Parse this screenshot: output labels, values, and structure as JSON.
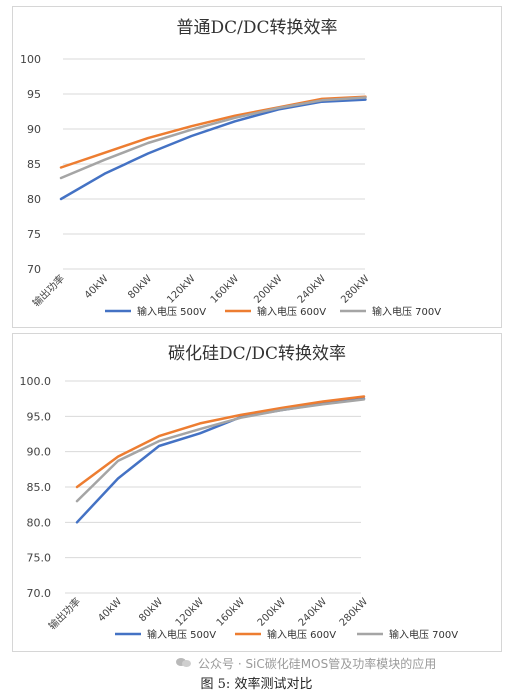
{
  "charts": [
    {
      "title": "普通DC/DC转换效率",
      "chart_data": {
        "type": "line",
        "title": "普通DC/DC转换效率",
        "categories": [
          "输出功率",
          "40kW",
          "80kW",
          "120kW",
          "160kW",
          "200kW",
          "240kW",
          "280kW"
        ],
        "ylim": [
          70,
          100
        ],
        "yticks": [
          70,
          75,
          80,
          85,
          90,
          95,
          100
        ],
        "ytick_decimals": 0,
        "grid": true,
        "legend_position": "bottom",
        "series": [
          {
            "name": "输入电压 500V",
            "color": "#4472C4",
            "values": [
              80.0,
              83.6,
              86.5,
              89.0,
              91.1,
              92.8,
              93.9,
              94.2
            ]
          },
          {
            "name": "输入电压 600V",
            "color": "#ED7D31",
            "values": [
              84.5,
              86.6,
              88.7,
              90.4,
              91.9,
              93.1,
              94.3,
              94.6
            ]
          },
          {
            "name": "输入电压 700V",
            "color": "#A5A5A5",
            "values": [
              83.0,
              85.6,
              88.0,
              89.9,
              91.6,
              93.0,
              94.1,
              94.5
            ]
          }
        ]
      }
    },
    {
      "title": "碳化硅DC/DC转换效率",
      "chart_data": {
        "type": "line",
        "title": "碳化硅DC/DC转换效率",
        "categories": [
          "输出功率",
          "40kW",
          "80kW",
          "120kW",
          "160kW",
          "200kW",
          "240kW",
          "280kW"
        ],
        "ylim": [
          70,
          100
        ],
        "yticks": [
          70,
          75,
          80,
          85,
          90,
          95,
          100
        ],
        "ytick_decimals": 1,
        "grid": true,
        "legend_position": "bottom",
        "series": [
          {
            "name": "输入电压 500V",
            "color": "#4472C4",
            "values": [
              80.0,
              86.2,
              90.8,
              92.6,
              94.9,
              95.9,
              96.8,
              97.5
            ]
          },
          {
            "name": "输入电压 600V",
            "color": "#ED7D31",
            "values": [
              85.0,
              89.3,
              92.2,
              94.0,
              95.2,
              96.2,
              97.1,
              97.8
            ]
          },
          {
            "name": "输入电压 700V",
            "color": "#A5A5A5",
            "values": [
              83.0,
              88.7,
              91.5,
              93.2,
              94.8,
              95.9,
              96.7,
              97.4
            ]
          }
        ]
      }
    }
  ],
  "watermark": {
    "text": "公众号 · SiC碳化硅MOS管及功率模块的应用"
  },
  "caption": "图 5:  效率测试对比"
}
